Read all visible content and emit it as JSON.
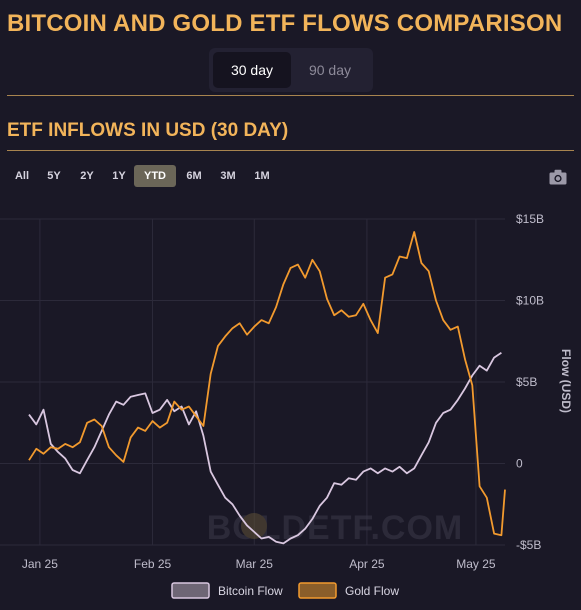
{
  "header": {
    "title": "BITCOIN AND GOLD ETF FLOWS COMPARISON"
  },
  "period_toggle": {
    "options": [
      "30 day",
      "90 day"
    ],
    "selected": "30 day"
  },
  "chart_section": {
    "subtitle": "ETF INFLOWS IN USD (30 DAY)"
  },
  "range_selector": {
    "options": [
      "All",
      "5Y",
      "2Y",
      "1Y",
      "YTD",
      "6M",
      "3M",
      "1M"
    ],
    "selected": "YTD"
  },
  "toolbar": {
    "download_icon": "camera-icon"
  },
  "colors": {
    "background": "#1a1826",
    "accent": "#f2b45a",
    "bitcoin_line": "#d9c7e0",
    "gold_line": "#f29a2e",
    "grid": "#2c2a3a"
  },
  "watermark": {
    "text": "BOLDETF.COM"
  },
  "chart_data": {
    "type": "line",
    "title": "",
    "xlabel": "",
    "ylabel": "Flow (USD)",
    "y_axis_position": "right",
    "ylim": [
      -5,
      15
    ],
    "y_ticks": [
      -5,
      0,
      5,
      10,
      15
    ],
    "y_tick_labels": [
      "-$5B",
      "0",
      "$5B",
      "$10B",
      "$15B"
    ],
    "x_range": [
      "2025-01-22",
      "2025-06-02"
    ],
    "x_ticks": [
      "2025-01-25",
      "2025-02-25",
      "2025-03-25",
      "2025-04-25",
      "2025-05-25"
    ],
    "x_tick_labels": [
      "Jan 25",
      "Feb 25",
      "Mar 25",
      "Apr 25",
      "May 25"
    ],
    "grid": true,
    "legend_position": "bottom",
    "series": [
      {
        "name": "Bitcoin Flow",
        "color": "#d9c7e0",
        "points": [
          [
            "2025-01-22",
            3.0
          ],
          [
            "2025-01-24",
            2.4
          ],
          [
            "2025-01-26",
            3.3
          ],
          [
            "2025-01-28",
            1.2
          ],
          [
            "2025-01-30",
            0.7
          ],
          [
            "2025-02-01",
            0.3
          ],
          [
            "2025-02-03",
            -0.4
          ],
          [
            "2025-02-05",
            -0.6
          ],
          [
            "2025-02-07",
            0.2
          ],
          [
            "2025-02-09",
            1.0
          ],
          [
            "2025-02-11",
            2.0
          ],
          [
            "2025-02-13",
            3.0
          ],
          [
            "2025-02-15",
            3.8
          ],
          [
            "2025-02-17",
            3.6
          ],
          [
            "2025-02-19",
            4.1
          ],
          [
            "2025-02-21",
            4.2
          ],
          [
            "2025-02-23",
            4.3
          ],
          [
            "2025-02-25",
            3.1
          ],
          [
            "2025-02-27",
            3.3
          ],
          [
            "2025-03-01",
            3.9
          ],
          [
            "2025-03-03",
            3.2
          ],
          [
            "2025-03-05",
            3.5
          ],
          [
            "2025-03-07",
            2.4
          ],
          [
            "2025-03-09",
            3.2
          ],
          [
            "2025-03-11",
            1.7
          ],
          [
            "2025-03-13",
            -0.5
          ],
          [
            "2025-03-15",
            -1.3
          ],
          [
            "2025-03-17",
            -2.1
          ],
          [
            "2025-03-19",
            -2.5
          ],
          [
            "2025-03-21",
            -3.2
          ],
          [
            "2025-03-23",
            -3.8
          ],
          [
            "2025-03-25",
            -4.2
          ],
          [
            "2025-03-27",
            -4.6
          ],
          [
            "2025-03-29",
            -4.5
          ],
          [
            "2025-03-31",
            -4.8
          ],
          [
            "2025-04-02",
            -4.9
          ],
          [
            "2025-04-04",
            -4.6
          ],
          [
            "2025-04-06",
            -4.4
          ],
          [
            "2025-04-08",
            -4.0
          ],
          [
            "2025-04-10",
            -3.4
          ],
          [
            "2025-04-12",
            -2.6
          ],
          [
            "2025-04-14",
            -2.1
          ],
          [
            "2025-04-16",
            -1.2
          ],
          [
            "2025-04-18",
            -1.3
          ],
          [
            "2025-04-20",
            -0.9
          ],
          [
            "2025-04-22",
            -1.0
          ],
          [
            "2025-04-24",
            -0.5
          ],
          [
            "2025-04-26",
            -0.3
          ],
          [
            "2025-04-28",
            -0.6
          ],
          [
            "2025-04-30",
            -0.3
          ],
          [
            "2025-05-02",
            -0.5
          ],
          [
            "2025-05-04",
            -0.2
          ],
          [
            "2025-05-06",
            -0.6
          ],
          [
            "2025-05-08",
            -0.3
          ],
          [
            "2025-05-10",
            0.5
          ],
          [
            "2025-05-12",
            1.3
          ],
          [
            "2025-05-14",
            2.5
          ],
          [
            "2025-05-16",
            3.1
          ],
          [
            "2025-05-18",
            3.3
          ],
          [
            "2025-05-20",
            3.9
          ],
          [
            "2025-05-22",
            4.6
          ],
          [
            "2025-05-24",
            5.4
          ],
          [
            "2025-05-26",
            6.0
          ],
          [
            "2025-05-28",
            5.7
          ],
          [
            "2025-05-30",
            6.5
          ],
          [
            "2025-06-01",
            6.8
          ]
        ]
      },
      {
        "name": "Gold Flow",
        "color": "#f29a2e",
        "points": [
          [
            "2025-01-22",
            0.2
          ],
          [
            "2025-01-24",
            0.9
          ],
          [
            "2025-01-26",
            0.6
          ],
          [
            "2025-01-28",
            1.0
          ],
          [
            "2025-01-30",
            0.9
          ],
          [
            "2025-02-01",
            1.2
          ],
          [
            "2025-02-03",
            1.0
          ],
          [
            "2025-02-05",
            1.3
          ],
          [
            "2025-02-07",
            2.5
          ],
          [
            "2025-02-09",
            2.7
          ],
          [
            "2025-02-11",
            2.3
          ],
          [
            "2025-02-13",
            1.0
          ],
          [
            "2025-02-15",
            0.5
          ],
          [
            "2025-02-17",
            0.1
          ],
          [
            "2025-02-19",
            1.6
          ],
          [
            "2025-02-21",
            2.2
          ],
          [
            "2025-02-23",
            2.0
          ],
          [
            "2025-02-25",
            2.6
          ],
          [
            "2025-02-27",
            2.2
          ],
          [
            "2025-03-01",
            2.5
          ],
          [
            "2025-03-03",
            3.8
          ],
          [
            "2025-03-05",
            3.3
          ],
          [
            "2025-03-07",
            3.5
          ],
          [
            "2025-03-09",
            2.9
          ],
          [
            "2025-03-11",
            2.3
          ],
          [
            "2025-03-13",
            5.5
          ],
          [
            "2025-03-15",
            7.2
          ],
          [
            "2025-03-17",
            7.8
          ],
          [
            "2025-03-19",
            8.3
          ],
          [
            "2025-03-21",
            8.6
          ],
          [
            "2025-03-23",
            7.9
          ],
          [
            "2025-03-25",
            8.4
          ],
          [
            "2025-03-27",
            8.8
          ],
          [
            "2025-03-29",
            8.6
          ],
          [
            "2025-03-31",
            9.6
          ],
          [
            "2025-04-02",
            11.0
          ],
          [
            "2025-04-04",
            12.0
          ],
          [
            "2025-04-06",
            12.2
          ],
          [
            "2025-04-08",
            11.4
          ],
          [
            "2025-04-10",
            12.5
          ],
          [
            "2025-04-12",
            11.8
          ],
          [
            "2025-04-14",
            10.1
          ],
          [
            "2025-04-16",
            9.1
          ],
          [
            "2025-04-18",
            9.4
          ],
          [
            "2025-04-20",
            9.0
          ],
          [
            "2025-04-22",
            9.1
          ],
          [
            "2025-04-24",
            9.8
          ],
          [
            "2025-04-26",
            8.8
          ],
          [
            "2025-04-28",
            8.0
          ],
          [
            "2025-04-30",
            11.4
          ],
          [
            "2025-05-02",
            11.6
          ],
          [
            "2025-05-04",
            12.7
          ],
          [
            "2025-05-06",
            12.6
          ],
          [
            "2025-05-08",
            14.2
          ],
          [
            "2025-05-10",
            12.3
          ],
          [
            "2025-05-12",
            11.8
          ],
          [
            "2025-05-14",
            10.0
          ],
          [
            "2025-05-16",
            8.8
          ],
          [
            "2025-05-18",
            8.2
          ],
          [
            "2025-05-20",
            8.4
          ],
          [
            "2025-05-22",
            6.4
          ],
          [
            "2025-05-24",
            4.8
          ],
          [
            "2025-05-26",
            -1.4
          ],
          [
            "2025-05-28",
            -2.1
          ],
          [
            "2025-05-30",
            -4.3
          ],
          [
            "2025-06-01",
            -4.4
          ],
          [
            "2025-06-02",
            -1.6
          ]
        ]
      }
    ]
  }
}
